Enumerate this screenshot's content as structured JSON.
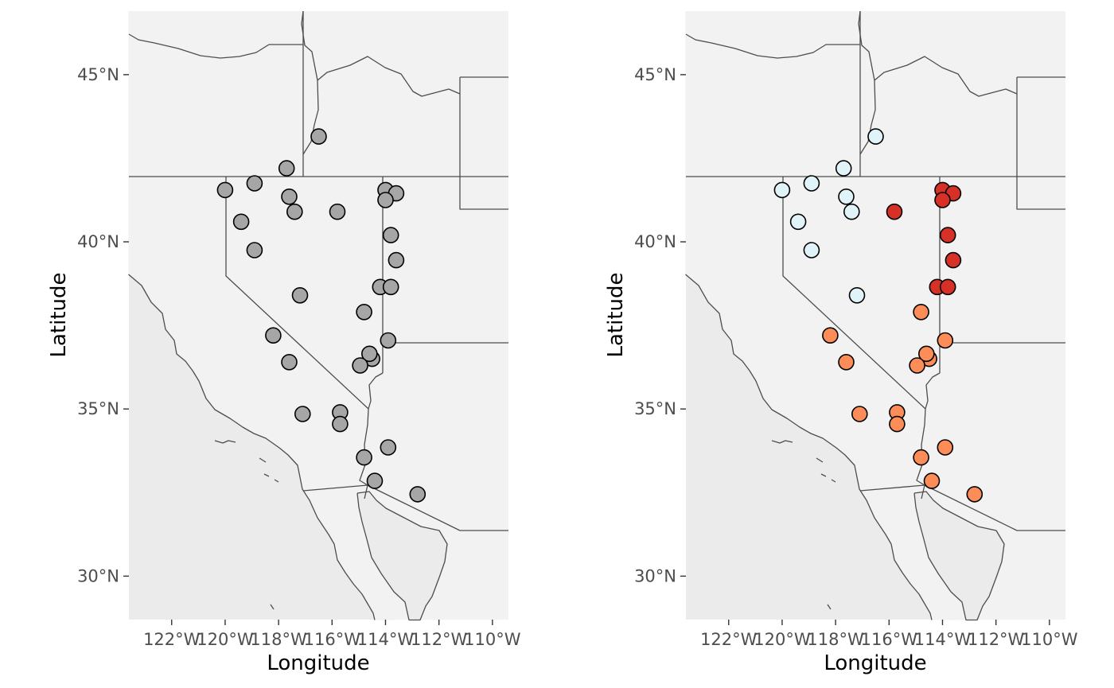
{
  "figure": {
    "panels": [
      {
        "id": "left",
        "xlabel": "Longitude",
        "ylabel": "Latitude",
        "x_ticks": [
          "122°W",
          "120°W",
          "118°W",
          "116°W",
          "114°W",
          "112°W",
          "110°W"
        ],
        "y_ticks": [
          "30°N",
          "35°N",
          "40°N",
          "45°N"
        ],
        "color_mode": "uniform",
        "point_color": "#A6A6A6"
      },
      {
        "id": "right",
        "xlabel": "Longitude",
        "ylabel": "Latitude",
        "x_ticks": [
          "122°W",
          "120°W",
          "118°W",
          "116°W",
          "114°W",
          "112°W",
          "110°W"
        ],
        "y_ticks": [
          "30°N",
          "35°N",
          "40°N",
          "45°N"
        ],
        "color_mode": "group",
        "group_colors": {
          "1": "#E0F3F8",
          "2": "#FC8D59",
          "3": "#D73027"
        }
      }
    ],
    "colors": {
      "land": "#F2F2F2",
      "sea": "#EBEBEB",
      "border": "#4D4D4D",
      "point_outline": "#000000"
    }
  },
  "map_data": {
    "extent": {
      "lon": [
        -123.6,
        -109.4
      ],
      "lat": [
        28.7,
        46.9
      ]
    },
    "points": [
      {
        "lon": -116.5,
        "lat": 43.15,
        "group": 1
      },
      {
        "lon": -117.7,
        "lat": 42.2,
        "group": 1
      },
      {
        "lon": -120.0,
        "lat": 41.55,
        "group": 1
      },
      {
        "lon": -118.9,
        "lat": 41.75,
        "group": 1
      },
      {
        "lon": -117.6,
        "lat": 41.35,
        "group": 1
      },
      {
        "lon": -117.4,
        "lat": 40.9,
        "group": 1
      },
      {
        "lon": -119.4,
        "lat": 40.6,
        "group": 1
      },
      {
        "lon": -118.9,
        "lat": 39.75,
        "group": 1
      },
      {
        "lon": -117.2,
        "lat": 38.4,
        "group": 1
      },
      {
        "lon": -115.8,
        "lat": 40.9,
        "group": 3
      },
      {
        "lon": -114.0,
        "lat": 41.55,
        "group": 3
      },
      {
        "lon": -113.6,
        "lat": 41.45,
        "group": 3
      },
      {
        "lon": -114.0,
        "lat": 41.25,
        "group": 3
      },
      {
        "lon": -113.8,
        "lat": 40.2,
        "group": 3
      },
      {
        "lon": -113.6,
        "lat": 39.45,
        "group": 3
      },
      {
        "lon": -114.2,
        "lat": 38.65,
        "group": 3
      },
      {
        "lon": -113.8,
        "lat": 38.65,
        "group": 3
      },
      {
        "lon": -114.8,
        "lat": 37.9,
        "group": 2
      },
      {
        "lon": -113.9,
        "lat": 37.05,
        "group": 2
      },
      {
        "lon": -114.5,
        "lat": 36.5,
        "group": 2
      },
      {
        "lon": -114.6,
        "lat": 36.65,
        "group": 2
      },
      {
        "lon": -114.95,
        "lat": 36.3,
        "group": 2
      },
      {
        "lon": -118.2,
        "lat": 37.2,
        "group": 2
      },
      {
        "lon": -117.6,
        "lat": 36.4,
        "group": 2
      },
      {
        "lon": -117.1,
        "lat": 34.85,
        "group": 2
      },
      {
        "lon": -115.7,
        "lat": 34.9,
        "group": 2
      },
      {
        "lon": -115.7,
        "lat": 34.55,
        "group": 2
      },
      {
        "lon": -113.9,
        "lat": 33.85,
        "group": 2
      },
      {
        "lon": -114.8,
        "lat": 33.55,
        "group": 2
      },
      {
        "lon": -114.4,
        "lat": 32.85,
        "group": 2
      },
      {
        "lon": -112.8,
        "lat": 32.45,
        "group": 2
      }
    ]
  }
}
